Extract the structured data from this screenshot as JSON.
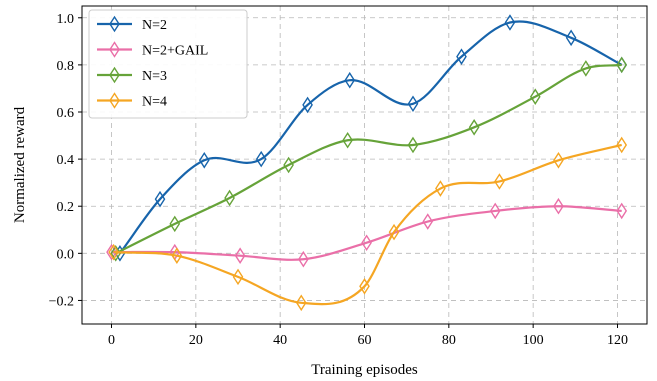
{
  "chart_data": {
    "type": "line",
    "xlabel": "Training episodes",
    "ylabel": "Normalized reward",
    "xlim": [
      -7,
      127
    ],
    "ylim": [
      -0.3,
      1.05
    ],
    "xticks": [
      0,
      20,
      40,
      60,
      80,
      100,
      120
    ],
    "yticks": [
      -0.2,
      0.0,
      0.2,
      0.4,
      0.6,
      0.8,
      1.0
    ],
    "xtick_labels": [
      "0",
      "20",
      "40",
      "60",
      "80",
      "100",
      "120"
    ],
    "ytick_labels": [
      "−0.2",
      "0.0",
      "0.2",
      "0.4",
      "0.6",
      "0.8",
      "1.0"
    ],
    "grid": true,
    "legend_position": "top-left",
    "marker": "thin-diamond",
    "series": [
      {
        "name": "N=2",
        "color": "#1764ab",
        "x": [
          2,
          11.5,
          22,
          35.5,
          46.5,
          56.5,
          71.5,
          83,
          94.5,
          109,
          121
        ],
        "y": [
          0.0,
          0.23,
          0.395,
          0.4,
          0.63,
          0.735,
          0.635,
          0.835,
          0.98,
          0.915,
          0.8
        ]
      },
      {
        "name": "N=2+GAIL",
        "color": "#ea6fa8",
        "x": [
          0,
          15,
          30.5,
          45.5,
          60.5,
          75,
          91,
          106,
          121
        ],
        "y": [
          0.005,
          0.005,
          -0.01,
          -0.025,
          0.045,
          0.135,
          0.18,
          0.2,
          0.18
        ]
      },
      {
        "name": "N=3",
        "color": "#66a339",
        "x": [
          1,
          15,
          28,
          42,
          56,
          71.5,
          86,
          100.5,
          112.5,
          121
        ],
        "y": [
          0.0,
          0.125,
          0.235,
          0.375,
          0.48,
          0.46,
          0.535,
          0.665,
          0.785,
          0.8
        ]
      },
      {
        "name": "N=4",
        "color": "#f5a623",
        "x": [
          0.5,
          15.5,
          30,
          45,
          60,
          67,
          78,
          92,
          106,
          121
        ],
        "y": [
          0.005,
          -0.01,
          -0.1,
          -0.21,
          -0.14,
          0.09,
          0.275,
          0.305,
          0.395,
          0.46
        ]
      }
    ]
  }
}
